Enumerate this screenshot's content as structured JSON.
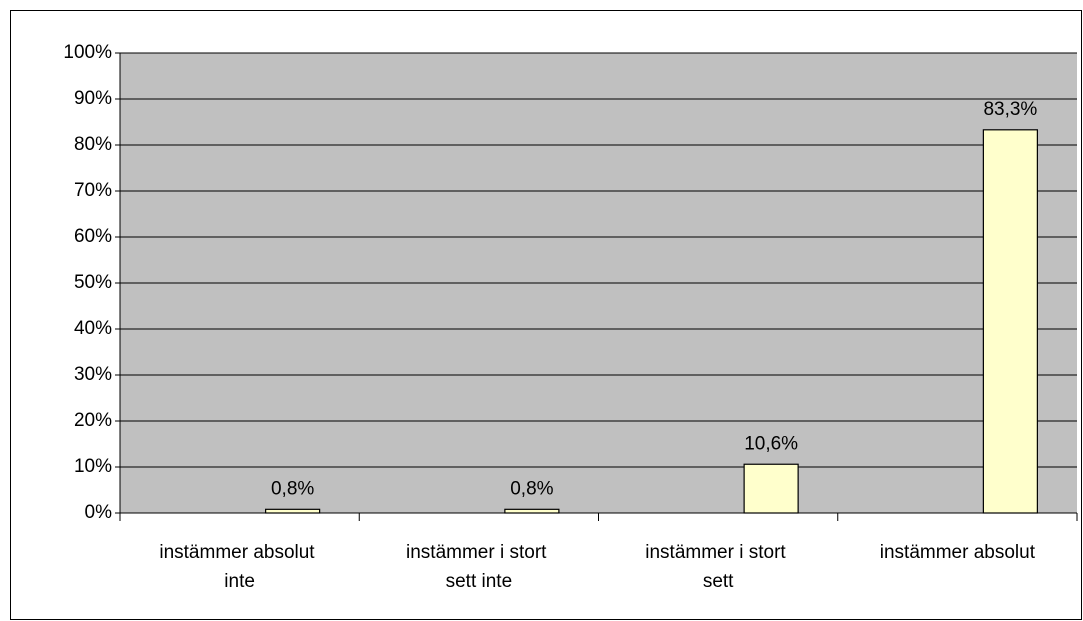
{
  "chart_data": {
    "type": "bar",
    "categories": [
      "instämmer absolut inte",
      "instämmer i stort sett inte",
      "instämmer i stort sett",
      "instämmer absolut"
    ],
    "values": [
      0.8,
      0.8,
      10.6,
      83.3
    ],
    "value_labels": [
      "0,8%",
      "0,8%",
      "10,6%",
      "83,3%"
    ],
    "color": "#ffffcc",
    "ylim": [
      0,
      100
    ],
    "yticks": [
      {
        "value": 0,
        "label": "0%"
      },
      {
        "value": 10,
        "label": "10%"
      },
      {
        "value": 20,
        "label": "20%"
      },
      {
        "value": 30,
        "label": "30%"
      },
      {
        "value": 40,
        "label": "40%"
      },
      {
        "value": 50,
        "label": "50%"
      },
      {
        "value": 60,
        "label": "60%"
      },
      {
        "value": 70,
        "label": "70%"
      },
      {
        "value": 80,
        "label": "80%"
      },
      {
        "value": 90,
        "label": "90%"
      },
      {
        "value": 100,
        "label": "100%"
      }
    ],
    "grid": true
  }
}
